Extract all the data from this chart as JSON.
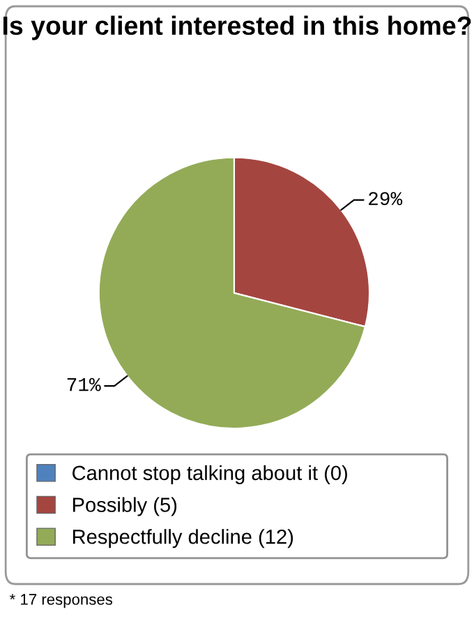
{
  "chart_data": {
    "type": "pie",
    "title": "Is your client interested in this home?",
    "categories": [
      "Cannot stop talking about it (0)",
      "Possibly (5)",
      "Respectfully decline (12)"
    ],
    "values": [
      0,
      29,
      71
    ],
    "colors": [
      "#4f81bd",
      "#a5453f",
      "#93ab57"
    ],
    "value_labels": [
      null,
      "29%",
      "71%"
    ],
    "legend": "bottom",
    "annotations": [
      "* 17 responses"
    ]
  }
}
